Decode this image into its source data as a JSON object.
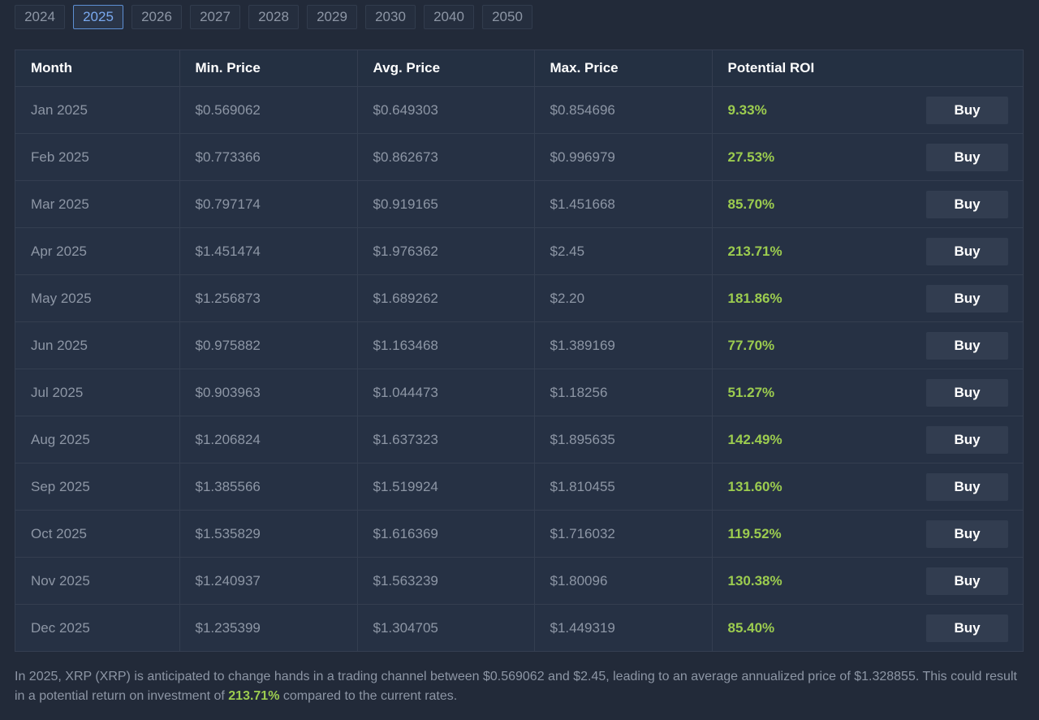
{
  "year_tabs": [
    {
      "label": "2024",
      "active": false
    },
    {
      "label": "2025",
      "active": true
    },
    {
      "label": "2026",
      "active": false
    },
    {
      "label": "2027",
      "active": false
    },
    {
      "label": "2028",
      "active": false
    },
    {
      "label": "2029",
      "active": false
    },
    {
      "label": "2030",
      "active": false
    },
    {
      "label": "2040",
      "active": false
    },
    {
      "label": "2050",
      "active": false
    }
  ],
  "table": {
    "headers": [
      "Month",
      "Min. Price",
      "Avg. Price",
      "Max. Price",
      "Potential ROI"
    ],
    "buy_label": "Buy",
    "rows": [
      {
        "month": "Jan 2025",
        "min": "$0.569062",
        "avg": "$0.649303",
        "max": "$0.854696",
        "roi": "9.33%"
      },
      {
        "month": "Feb 2025",
        "min": "$0.773366",
        "avg": "$0.862673",
        "max": "$0.996979",
        "roi": "27.53%"
      },
      {
        "month": "Mar 2025",
        "min": "$0.797174",
        "avg": "$0.919165",
        "max": "$1.451668",
        "roi": "85.70%"
      },
      {
        "month": "Apr 2025",
        "min": "$1.451474",
        "avg": "$1.976362",
        "max": "$2.45",
        "roi": "213.71%"
      },
      {
        "month": "May 2025",
        "min": "$1.256873",
        "avg": "$1.689262",
        "max": "$2.20",
        "roi": "181.86%"
      },
      {
        "month": "Jun 2025",
        "min": "$0.975882",
        "avg": "$1.163468",
        "max": "$1.389169",
        "roi": "77.70%"
      },
      {
        "month": "Jul 2025",
        "min": "$0.903963",
        "avg": "$1.044473",
        "max": "$1.18256",
        "roi": "51.27%"
      },
      {
        "month": "Aug 2025",
        "min": "$1.206824",
        "avg": "$1.637323",
        "max": "$1.895635",
        "roi": "142.49%"
      },
      {
        "month": "Sep 2025",
        "min": "$1.385566",
        "avg": "$1.519924",
        "max": "$1.810455",
        "roi": "131.60%"
      },
      {
        "month": "Oct 2025",
        "min": "$1.535829",
        "avg": "$1.616369",
        "max": "$1.716032",
        "roi": "119.52%"
      },
      {
        "month": "Nov 2025",
        "min": "$1.240937",
        "avg": "$1.563239",
        "max": "$1.80096",
        "roi": "130.38%"
      },
      {
        "month": "Dec 2025",
        "min": "$1.235399",
        "avg": "$1.304705",
        "max": "$1.449319",
        "roi": "85.40%"
      }
    ]
  },
  "summary": {
    "text_before": "In 2025, XRP (XRP) is anticipated to change hands in a trading channel between $0.569062 and $2.45, leading to an average annualized price of $1.328855. This could result in a potential return on investment of ",
    "highlight": "213.71%",
    "text_after": " compared to the current rates."
  },
  "colors": {
    "background": "#222a39",
    "accent_tab": "#5d8fd3",
    "roi_green": "#9ccc4f",
    "button_bg": "#323d50"
  }
}
